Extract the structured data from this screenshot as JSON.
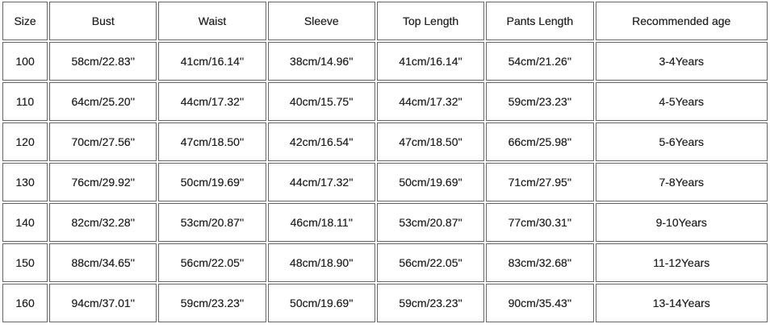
{
  "headers": [
    "Size",
    "Bust",
    "Waist",
    "Sleeve",
    "Top Length",
    "Pants Length",
    "Recommended age"
  ],
  "rows": [
    [
      "100",
      "58cm/22.83''",
      "41cm/16.14''",
      "38cm/14.96''",
      "41cm/16.14''",
      "54cm/21.26''",
      "3-4Years"
    ],
    [
      "110",
      "64cm/25.20''",
      "44cm/17.32''",
      "40cm/15.75''",
      "44cm/17.32''",
      "59cm/23.23''",
      "4-5Years"
    ],
    [
      "120",
      "70cm/27.56''",
      "47cm/18.50''",
      "42cm/16.54''",
      "47cm/18.50''",
      "66cm/25.98''",
      "5-6Years"
    ],
    [
      "130",
      "76cm/29.92''",
      "50cm/19.69''",
      "44cm/17.32''",
      "50cm/19.69''",
      "71cm/27.95''",
      "7-8Years"
    ],
    [
      "140",
      "82cm/32.28''",
      "53cm/20.87''",
      "46cm/18.11''",
      "53cm/20.87''",
      "77cm/30.31''",
      "9-10Years"
    ],
    [
      "150",
      "88cm/34.65''",
      "56cm/22.05''",
      "48cm/18.90''",
      "56cm/22.05''",
      "83cm/32.68''",
      "11-12Years"
    ],
    [
      "160",
      "94cm/37.01''",
      "59cm/23.23''",
      "50cm/19.69''",
      "59cm/23.23''",
      "90cm/35.43''",
      "13-14Years"
    ]
  ]
}
